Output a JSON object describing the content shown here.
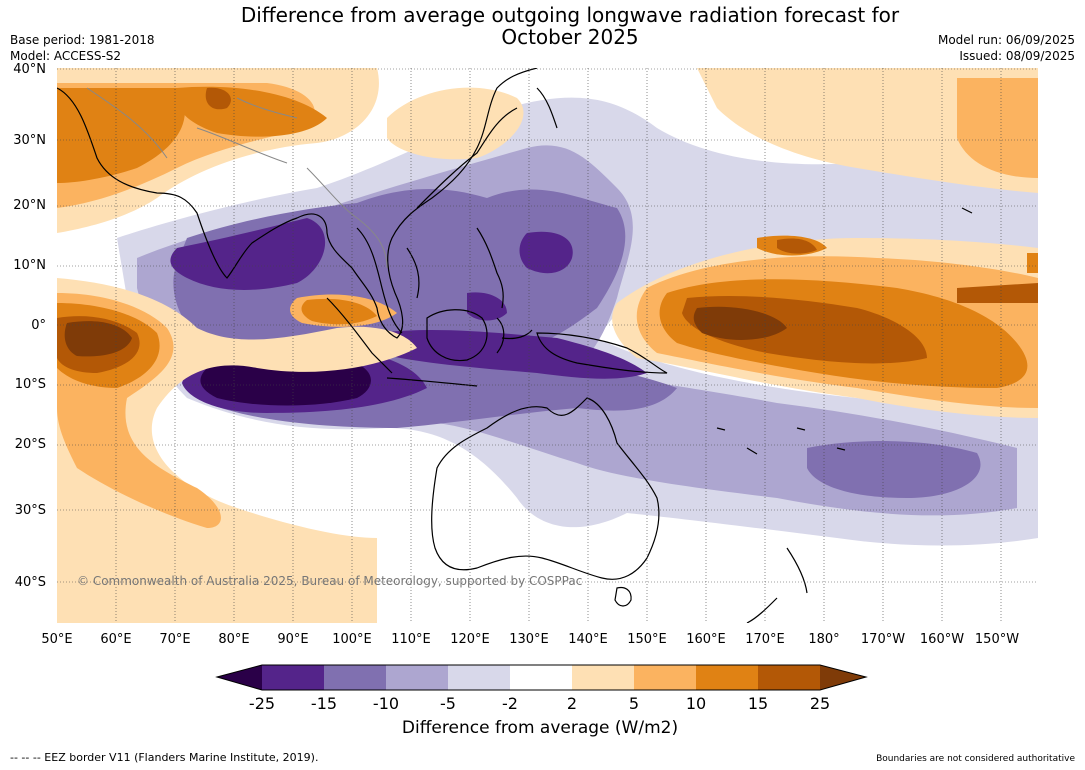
{
  "title_line1": "Difference from average outgoing longwave radiation forecast for",
  "title_line2": "October 2025",
  "base_period": "Base period: 1981-2018",
  "model": "Model: ACCESS-S2",
  "model_run": "Model run: 06/09/2025",
  "issued": "Issued: 08/09/2025",
  "lat_labels": [
    "40°N",
    "30°N",
    "20°N",
    "10°N",
    "0°",
    "10°S",
    "20°S",
    "30°S",
    "40°S"
  ],
  "lon_labels": [
    "50°E",
    "60°E",
    "70°E",
    "80°E",
    "90°E",
    "100°E",
    "110°E",
    "120°E",
    "130°E",
    "140°E",
    "150°E",
    "160°E",
    "170°E",
    "180°",
    "170°W",
    "160°W",
    "150°W"
  ],
  "copyright": "© Commonwealth of Australia 2025, Bureau of Meteorology, supported by COSPPac",
  "colorbar": {
    "ticks": [
      "-25",
      "-15",
      "-10",
      "-5",
      "-2",
      "2",
      "5",
      "10",
      "15",
      "25"
    ],
    "label": "Difference from average (W/m2)",
    "colors": {
      "lt_m25": "#2a0048",
      "m25_m15": "#54248a",
      "m15_m10": "#8070b0",
      "m10_m5": "#ada6d0",
      "m5_m2": "#d8d8ea",
      "m2_2": "#ffffff",
      "p2_5": "#fee0b4",
      "p5_10": "#fbb360",
      "p10_15": "#e08214",
      "p15_25": "#b35806",
      "gt_25": "#7f3b08"
    }
  },
  "footer_left": "--  --  -- EEZ border V11 (Flanders Marine Institute, 2019).",
  "footer_right": "Boundaries are not considered authoritative"
}
